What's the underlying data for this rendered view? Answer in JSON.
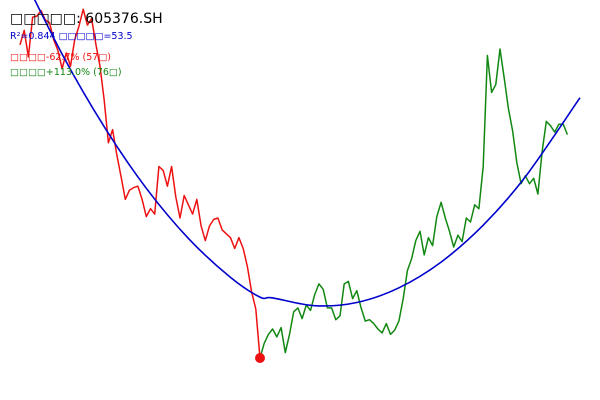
{
  "colors": {
    "background": "#ffffff",
    "title": "#000000",
    "fit_info": "#0000cc",
    "decline": "#ee1111",
    "rise": "#118811",
    "fit_curve": "#0000cc",
    "marker": "#ee1111"
  },
  "header": {
    "title": "□□□□□: 605376.SH",
    "fit_stats": "R²=0.844 □□□□□=53.5",
    "decline_stat": "□□□□-62.7% (57□)",
    "rise_stat": "□□□□+113.0% (76□)"
  },
  "chart_data": {
    "type": "line",
    "title": "",
    "xlabel": "",
    "ylabel": "",
    "xlim": [
      0,
      133
    ],
    "ylim": [
      0,
      100
    ],
    "grid": false,
    "legend": "none",
    "min_marker": {
      "index": 57,
      "value": 0
    },
    "series": [
      {
        "key": "decline",
        "x_start": 0,
        "values": [
          87.5,
          91.5,
          84.1,
          95.2,
          95.5,
          97.0,
          94.4,
          93.7,
          88.9,
          85.9,
          80.8,
          85.2,
          81.5,
          88.9,
          92.6,
          97.4,
          93.0,
          94.8,
          87.8,
          81.5,
          72.0,
          60.1,
          63.8,
          56.8,
          50.6,
          44.3,
          46.9,
          47.6,
          48.0,
          44.3,
          39.5,
          41.7,
          40.2,
          53.5,
          52.4,
          48.0,
          53.5,
          45.0,
          39.1,
          45.4,
          42.8,
          40.2,
          44.3,
          36.9,
          32.8,
          36.9,
          38.7,
          39.1,
          35.8,
          34.7,
          33.6,
          30.6,
          33.6,
          30.6,
          25.5,
          18.5,
          13.7,
          0.0
        ]
      },
      {
        "key": "rise",
        "x_start": 57,
        "values": [
          0.0,
          4.1,
          6.6,
          8.1,
          5.9,
          8.5,
          1.5,
          6.6,
          12.9,
          14.0,
          11.0,
          14.8,
          13.3,
          17.7,
          20.7,
          19.2,
          14.0,
          14.0,
          10.7,
          11.8,
          20.7,
          21.4,
          16.6,
          18.8,
          14.0,
          10.3,
          10.7,
          9.6,
          8.1,
          7.0,
          9.6,
          6.6,
          7.8,
          10.3,
          16.6,
          24.4,
          27.7,
          32.8,
          35.4,
          28.8,
          33.6,
          31.4,
          39.5,
          43.5,
          39.1,
          35.4,
          31.0,
          34.3,
          32.5,
          39.1,
          38.0,
          42.8,
          41.7,
          53.5,
          84.5,
          74.2,
          76.4,
          86.3,
          78.2,
          69.7,
          63.5,
          54.6,
          48.7,
          50.9,
          48.7,
          50.2,
          45.8,
          57.6,
          66.1,
          64.9,
          63.1,
          65.3,
          65.3,
          62.4
        ]
      },
      {
        "key": "fit",
        "kind": "quadratic_fit",
        "name": "",
        "x": [
          0,
          10,
          20,
          30,
          40,
          50,
          57,
          60,
          70,
          80,
          90,
          100,
          110,
          120,
          133
        ],
        "values": [
          108.4,
          84.9,
          64.6,
          47.4,
          33.4,
          22.5,
          17.0,
          16.8,
          14.6,
          15.5,
          19.6,
          26.8,
          37.1,
          50.6,
          72.7
        ]
      }
    ]
  }
}
